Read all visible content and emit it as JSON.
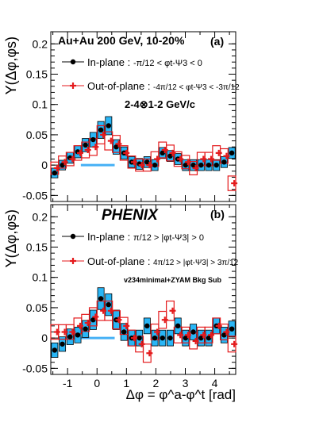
{
  "colors": {
    "blue": "#1e6fd6",
    "blue_fill": "#29b6f6",
    "red": "#e41a1c",
    "black": "#000000",
    "zero_line": "#45b0f5"
  },
  "x_axis": {
    "label": "Δφ = φ^a-φ^t [rad]",
    "ticks": [
      -1,
      0,
      1,
      2,
      3,
      4
    ],
    "range": [
      -1.5708,
      4.7124
    ]
  },
  "chart_data": [
    {
      "type": "scatter",
      "panel": "(a)",
      "title": "Au+Au 200 GeV, 10-20%",
      "ylabel": "Y(Δφ,φs)",
      "ylim": [
        -0.06,
        0.22
      ],
      "yticks": [
        -0.05,
        0,
        0.05,
        0.1,
        0.15,
        0.2
      ],
      "annotation": "2-4⊗1-2 GeV/c",
      "legend": [
        {
          "label": "In-plane",
          "cond_pre": "-π/12 < φt-Ψ3 < 0",
          "marker": "black-dot"
        },
        {
          "label": "Out-of-plane",
          "cond_pre": "-4π/12 < φt-Ψ3 < -3π/12",
          "marker": "red-cross"
        }
      ],
      "x": [
        -1.4399,
        -1.1781,
        -0.9163,
        -0.6545,
        -0.3927,
        -0.1309,
        0.1309,
        0.3927,
        0.6545,
        0.9163,
        1.1781,
        1.4399,
        1.7017,
        1.9635,
        2.2253,
        2.4871,
        2.7489,
        3.0107,
        3.2725,
        3.5343,
        3.7961,
        4.0579,
        4.3197,
        4.5815
      ],
      "series": [
        {
          "name": "In-plane",
          "values": [
            -0.013,
            0.0,
            0.012,
            0.022,
            0.033,
            0.042,
            0.058,
            0.065,
            0.03,
            0.02,
            0.005,
            0.002,
            0.005,
            0.0,
            0.02,
            0.015,
            0.01,
            0.0,
            0.0,
            0.0,
            0.0,
            0.0,
            0.005,
            0.02
          ],
          "sys": [
            0.008,
            0.008,
            0.009,
            0.01,
            0.011,
            0.012,
            0.014,
            0.015,
            0.012,
            0.01,
            0.009,
            0.009,
            0.009,
            0.009,
            0.009,
            0.009,
            0.009,
            0.009,
            0.009,
            0.009,
            0.009,
            0.009,
            0.009,
            0.009
          ]
        },
        {
          "name": "Out-of-plane",
          "values": [
            -0.005,
            0.005,
            0.01,
            0.02,
            0.025,
            0.03,
            0.05,
            0.04,
            0.035,
            0.02,
            0.005,
            0.0,
            0.0,
            0.01,
            0.025,
            0.02,
            0.01,
            0.005,
            -0.005,
            0.01,
            0.01,
            0.02,
            0.015,
            -0.03
          ],
          "sys": [
            0.01,
            0.01,
            0.011,
            0.012,
            0.013,
            0.014,
            0.015,
            0.015,
            0.014,
            0.012,
            0.01,
            0.01,
            0.01,
            0.012,
            0.013,
            0.013,
            0.012,
            0.011,
            0.011,
            0.011,
            0.011,
            0.012,
            0.012,
            0.012
          ]
        }
      ]
    },
    {
      "type": "scatter",
      "panel": "(b)",
      "title": "PHENIX",
      "ylabel": "Y(Δφ,φs)",
      "ylim": [
        -0.06,
        0.22
      ],
      "yticks": [
        -0.05,
        0,
        0.05,
        0.1,
        0.15,
        0.2
      ],
      "annotation": "v234minimal+ZYAM Bkg Sub",
      "legend": [
        {
          "label": "In-plane",
          "cond_pre": "π/12 > |φt-Ψ3| > 0",
          "marker": "black-dot"
        },
        {
          "label": "Out-of-plane",
          "cond_pre": "4π/12 > |φt-Ψ3| > 3π/12",
          "marker": "red-cross"
        }
      ],
      "x": [
        -1.4399,
        -1.1781,
        -0.9163,
        -0.6545,
        -0.3927,
        -0.1309,
        0.1309,
        0.3927,
        0.6545,
        0.9163,
        1.1781,
        1.4399,
        1.7017,
        1.9635,
        2.2253,
        2.4871,
        2.7489,
        3.0107,
        3.2725,
        3.5343,
        3.7961,
        4.0579,
        4.3197,
        4.5815
      ],
      "series": [
        {
          "name": "In-plane",
          "values": [
            -0.02,
            -0.01,
            0.002,
            0.005,
            0.015,
            0.03,
            0.065,
            0.055,
            0.03,
            0.01,
            0.0,
            0.0,
            0.02,
            0.0,
            0.0,
            0.0,
            0.02,
            0.0,
            0.01,
            0.0,
            0.0,
            0.02,
            0.005,
            0.015
          ],
          "sys": [
            0.012,
            0.012,
            0.013,
            0.013,
            0.014,
            0.016,
            0.018,
            0.018,
            0.016,
            0.014,
            0.013,
            0.013,
            0.013,
            0.013,
            0.013,
            0.013,
            0.013,
            0.013,
            0.013,
            0.013,
            0.013,
            0.013,
            0.013,
            0.013
          ]
        },
        {
          "name": "Out-of-plane",
          "values": [
            0.01,
            0.01,
            0.01,
            0.02,
            0.025,
            0.035,
            0.045,
            0.045,
            0.03,
            0.02,
            0.0,
            -0.01,
            -0.025,
            0.01,
            0.03,
            0.045,
            0.005,
            0.005,
            -0.005,
            0.005,
            0.005,
            0.02,
            0.01,
            -0.01
          ],
          "sys": [
            0.012,
            0.012,
            0.012,
            0.013,
            0.014,
            0.015,
            0.016,
            0.016,
            0.015,
            0.014,
            0.013,
            0.013,
            0.015,
            0.013,
            0.014,
            0.016,
            0.013,
            0.013,
            0.013,
            0.013,
            0.013,
            0.013,
            0.013,
            0.013
          ]
        }
      ]
    }
  ]
}
